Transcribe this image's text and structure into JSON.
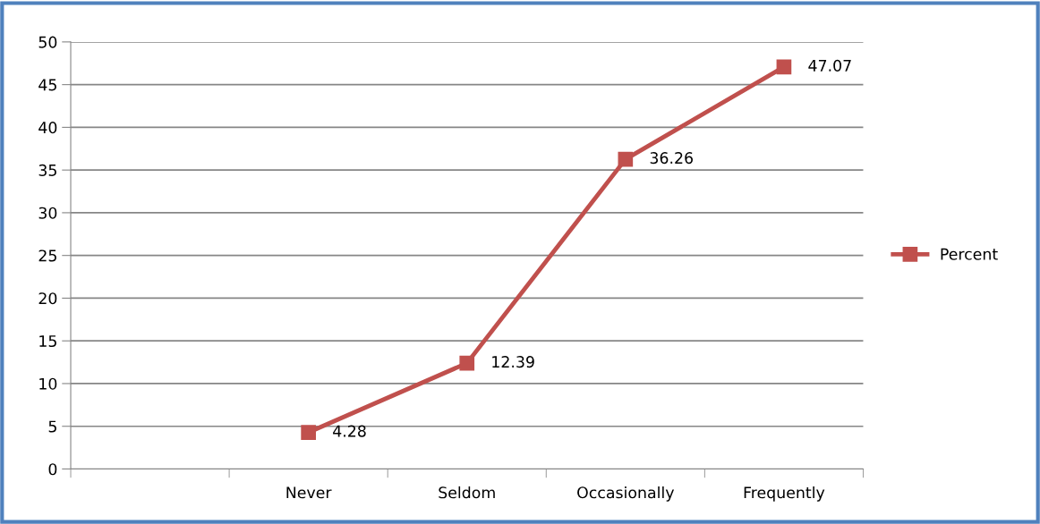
{
  "chart_data": {
    "type": "line",
    "categories": [
      null,
      "Never",
      "Seldom",
      "Occasionally",
      "Frequently"
    ],
    "series": [
      {
        "name": "Percent",
        "color": "#c0504d",
        "values": [
          null,
          4.28,
          12.39,
          36.26,
          47.07
        ]
      }
    ],
    "ylim": [
      0,
      50
    ],
    "yticks": [
      0,
      5,
      10,
      15,
      20,
      25,
      30,
      35,
      40,
      45,
      50
    ],
    "grid": "y",
    "legend": "right",
    "marker": "square",
    "line_style": "solid",
    "data_labels": true
  }
}
